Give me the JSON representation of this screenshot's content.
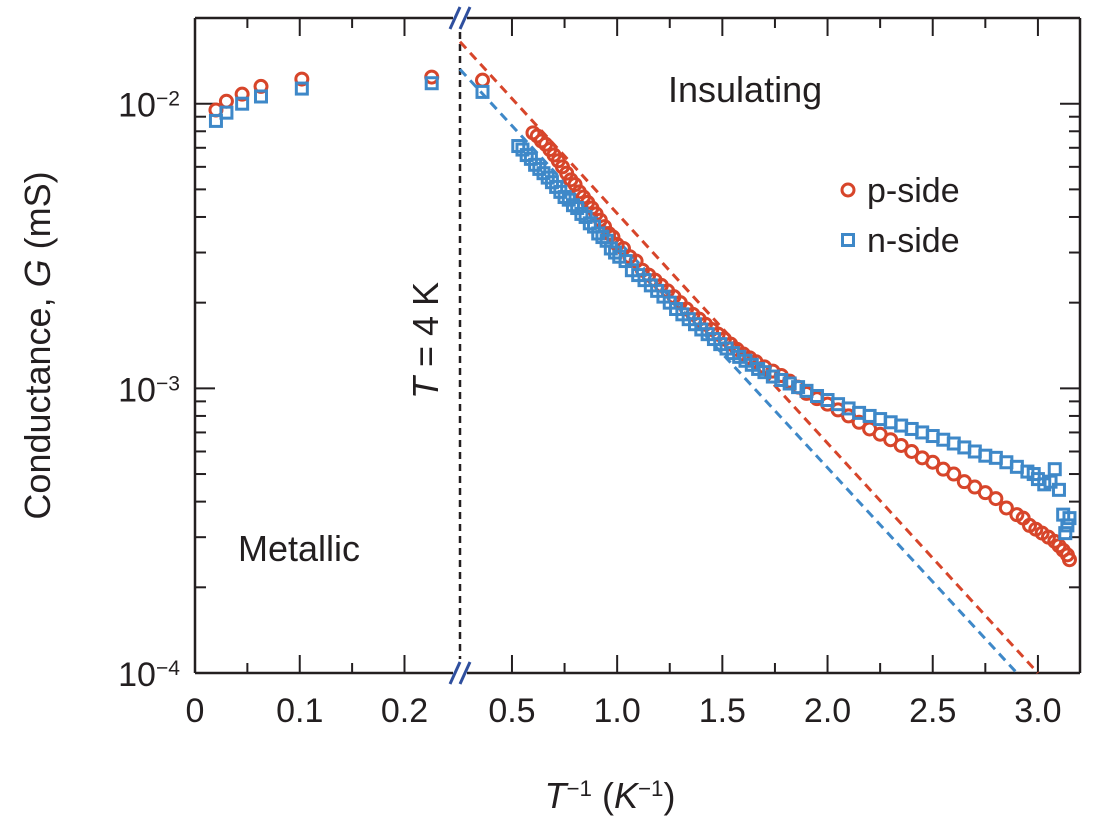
{
  "chart_data": {
    "type": "scatter",
    "xlabel": {
      "var": "T",
      "var_sup": "−1",
      "unit_open": " (",
      "unit_var": "K",
      "unit_sup": "−1",
      "unit_close": ")"
    },
    "ylabel": {
      "prefix": "Conductance, ",
      "var": "G",
      "suffix": " (mS)"
    },
    "yscale": "log",
    "ylim": [
      0.0001,
      0.02
    ],
    "ytick_labels": [
      {
        "value": 0.01,
        "base": "10",
        "exp": "−2"
      },
      {
        "value": 0.001,
        "base": "10",
        "exp": "−3"
      },
      {
        "value": 0.0001,
        "base": "10",
        "exp": "−4"
      }
    ],
    "x_broken_axis": true,
    "x_segments": [
      {
        "name": "left",
        "xlim": [
          0,
          0.253
        ],
        "ticks": [
          0,
          0.1,
          0.2
        ],
        "tick_labels": [
          "0",
          "0.1",
          "0.2"
        ]
      },
      {
        "name": "right",
        "xlim": [
          0.253,
          3.2
        ],
        "ticks": [
          0.5,
          1.0,
          1.5,
          2.0,
          2.5,
          3.0
        ],
        "tick_labels": [
          "0.5",
          "1.0",
          "1.5",
          "2.0",
          "2.5",
          "3.0"
        ]
      }
    ],
    "vline": {
      "x": 0.253,
      "label_var": "T",
      "label_rest": " = 4 K"
    },
    "region_labels": {
      "left": "Metallic",
      "right": "Insulating"
    },
    "legend_position": "upper-right",
    "series": [
      {
        "name": "p-side",
        "marker": "circle",
        "color": "#d7452a",
        "points": [
          [
            0.02,
            0.0095
          ],
          [
            0.03,
            0.0102
          ],
          [
            0.045,
            0.0108
          ],
          [
            0.063,
            0.0115
          ],
          [
            0.102,
            0.0122
          ],
          [
            0.226,
            0.0124
          ],
          [
            0.36,
            0.0121
          ],
          [
            0.6,
            0.0079
          ],
          [
            0.62,
            0.0077
          ],
          [
            0.64,
            0.0074
          ],
          [
            0.66,
            0.0072
          ],
          [
            0.68,
            0.0069
          ],
          [
            0.7,
            0.0066
          ],
          [
            0.72,
            0.0063
          ],
          [
            0.74,
            0.006
          ],
          [
            0.76,
            0.0057
          ],
          [
            0.78,
            0.0054
          ],
          [
            0.8,
            0.0052
          ],
          [
            0.82,
            0.0049
          ],
          [
            0.84,
            0.0047
          ],
          [
            0.86,
            0.0045
          ],
          [
            0.88,
            0.0043
          ],
          [
            0.9,
            0.0041
          ],
          [
            0.92,
            0.0039
          ],
          [
            0.94,
            0.0037
          ],
          [
            0.96,
            0.0035
          ],
          [
            0.98,
            0.0034
          ],
          [
            1.0,
            0.0032
          ],
          [
            1.03,
            0.0031
          ],
          [
            1.06,
            0.0029
          ],
          [
            1.09,
            0.0028
          ],
          [
            1.12,
            0.0026
          ],
          [
            1.15,
            0.0025
          ],
          [
            1.18,
            0.0024
          ],
          [
            1.21,
            0.0023
          ],
          [
            1.24,
            0.0022
          ],
          [
            1.27,
            0.0021
          ],
          [
            1.3,
            0.002
          ],
          [
            1.33,
            0.0019
          ],
          [
            1.36,
            0.00182
          ],
          [
            1.39,
            0.00175
          ],
          [
            1.42,
            0.00168
          ],
          [
            1.45,
            0.00161
          ],
          [
            1.48,
            0.00155
          ],
          [
            1.51,
            0.00149
          ],
          [
            1.54,
            0.00143
          ],
          [
            1.57,
            0.00137
          ],
          [
            1.6,
            0.00132
          ],
          [
            1.63,
            0.00128
          ],
          [
            1.66,
            0.00124
          ],
          [
            1.7,
            0.00119
          ],
          [
            1.74,
            0.00115
          ],
          [
            1.78,
            0.00111
          ],
          [
            1.82,
            0.00106
          ],
          [
            1.86,
            0.00101
          ],
          [
            1.9,
            0.00096
          ],
          [
            1.95,
            0.00092
          ],
          [
            2.0,
            0.00088
          ],
          [
            2.05,
            0.00084
          ],
          [
            2.1,
            0.0008
          ],
          [
            2.15,
            0.00076
          ],
          [
            2.2,
            0.00072
          ],
          [
            2.25,
            0.00069
          ],
          [
            2.3,
            0.00066
          ],
          [
            2.35,
            0.00063
          ],
          [
            2.4,
            0.0006
          ],
          [
            2.45,
            0.00057
          ],
          [
            2.5,
            0.00055
          ],
          [
            2.55,
            0.00052
          ],
          [
            2.6,
            0.0005
          ],
          [
            2.65,
            0.00047
          ],
          [
            2.7,
            0.00045
          ],
          [
            2.75,
            0.00043
          ],
          [
            2.8,
            0.00041
          ],
          [
            2.85,
            0.00038
          ],
          [
            2.9,
            0.00036
          ],
          [
            2.93,
            0.00035
          ],
          [
            2.96,
            0.00033
          ],
          [
            2.99,
            0.00032
          ],
          [
            3.02,
            0.00031
          ],
          [
            3.05,
            0.0003
          ],
          [
            3.08,
            0.00029
          ],
          [
            3.1,
            0.00028
          ],
          [
            3.12,
            0.00027
          ],
          [
            3.14,
            0.00026
          ],
          [
            3.15,
            0.00025
          ]
        ]
      },
      {
        "name": "n-side",
        "marker": "square",
        "color": "#3e88c8",
        "points": [
          [
            0.02,
            0.0087
          ],
          [
            0.03,
            0.0093
          ],
          [
            0.045,
            0.01
          ],
          [
            0.063,
            0.0106
          ],
          [
            0.102,
            0.0113
          ],
          [
            0.226,
            0.0118
          ],
          [
            0.36,
            0.011
          ],
          [
            0.53,
            0.0071
          ],
          [
            0.55,
            0.0069
          ],
          [
            0.57,
            0.0066
          ],
          [
            0.59,
            0.0064
          ],
          [
            0.61,
            0.0061
          ],
          [
            0.63,
            0.0059
          ],
          [
            0.65,
            0.0057
          ],
          [
            0.67,
            0.0055
          ],
          [
            0.69,
            0.0053
          ],
          [
            0.71,
            0.0051
          ],
          [
            0.73,
            0.0049
          ],
          [
            0.75,
            0.0047
          ],
          [
            0.77,
            0.0046
          ],
          [
            0.79,
            0.0044
          ],
          [
            0.81,
            0.0043
          ],
          [
            0.83,
            0.0041
          ],
          [
            0.85,
            0.004
          ],
          [
            0.87,
            0.0038
          ],
          [
            0.89,
            0.0037
          ],
          [
            0.91,
            0.0035
          ],
          [
            0.93,
            0.0034
          ],
          [
            0.95,
            0.0033
          ],
          [
            0.97,
            0.0031
          ],
          [
            0.99,
            0.003
          ],
          [
            1.01,
            0.0029
          ],
          [
            1.04,
            0.0028
          ],
          [
            1.07,
            0.0026
          ],
          [
            1.1,
            0.0025
          ],
          [
            1.13,
            0.0024
          ],
          [
            1.16,
            0.0023
          ],
          [
            1.19,
            0.0022
          ],
          [
            1.22,
            0.0021
          ],
          [
            1.25,
            0.002
          ],
          [
            1.28,
            0.0019
          ],
          [
            1.31,
            0.00182
          ],
          [
            1.34,
            0.00175
          ],
          [
            1.37,
            0.00168
          ],
          [
            1.4,
            0.00161
          ],
          [
            1.43,
            0.00155
          ],
          [
            1.46,
            0.00149
          ],
          [
            1.49,
            0.00143
          ],
          [
            1.52,
            0.00138
          ],
          [
            1.55,
            0.00133
          ],
          [
            1.58,
            0.00129
          ],
          [
            1.61,
            0.00125
          ],
          [
            1.64,
            0.00121
          ],
          [
            1.67,
            0.00117
          ],
          [
            1.7,
            0.00114
          ],
          [
            1.74,
            0.0011
          ],
          [
            1.78,
            0.00107
          ],
          [
            1.82,
            0.00104
          ],
          [
            1.86,
            0.00101
          ],
          [
            1.9,
            0.00098
          ],
          [
            1.95,
            0.00094
          ],
          [
            2.0,
            0.00091
          ],
          [
            2.05,
            0.00088
          ],
          [
            2.1,
            0.00085
          ],
          [
            2.15,
            0.00082
          ],
          [
            2.2,
            0.0008
          ],
          [
            2.25,
            0.00078
          ],
          [
            2.3,
            0.00076
          ],
          [
            2.35,
            0.00074
          ],
          [
            2.4,
            0.00072
          ],
          [
            2.45,
            0.0007
          ],
          [
            2.5,
            0.00068
          ],
          [
            2.55,
            0.00066
          ],
          [
            2.6,
            0.00064
          ],
          [
            2.65,
            0.00062
          ],
          [
            2.7,
            0.0006
          ],
          [
            2.75,
            0.00058
          ],
          [
            2.8,
            0.00057
          ],
          [
            2.85,
            0.00055
          ],
          [
            2.9,
            0.00053
          ],
          [
            2.95,
            0.00051
          ],
          [
            2.98,
            0.0005
          ],
          [
            3.0,
            0.00048
          ],
          [
            3.03,
            0.00046
          ],
          [
            3.06,
            0.00047
          ],
          [
            3.08,
            0.00052
          ],
          [
            3.1,
            0.00044
          ],
          [
            3.12,
            0.00036
          ],
          [
            3.13,
            0.00031
          ],
          [
            3.14,
            0.00033
          ],
          [
            3.15,
            0.00035
          ]
        ]
      }
    ],
    "fit_lines": [
      {
        "series": "p-side",
        "color": "#d7452a",
        "from": [
          0.253,
          0.0165
        ],
        "to": [
          3.0,
          0.0001
        ]
      },
      {
        "series": "n-side",
        "color": "#3e88c8",
        "from": [
          0.253,
          0.0132
        ],
        "to": [
          2.9,
          0.0001
        ]
      }
    ]
  }
}
